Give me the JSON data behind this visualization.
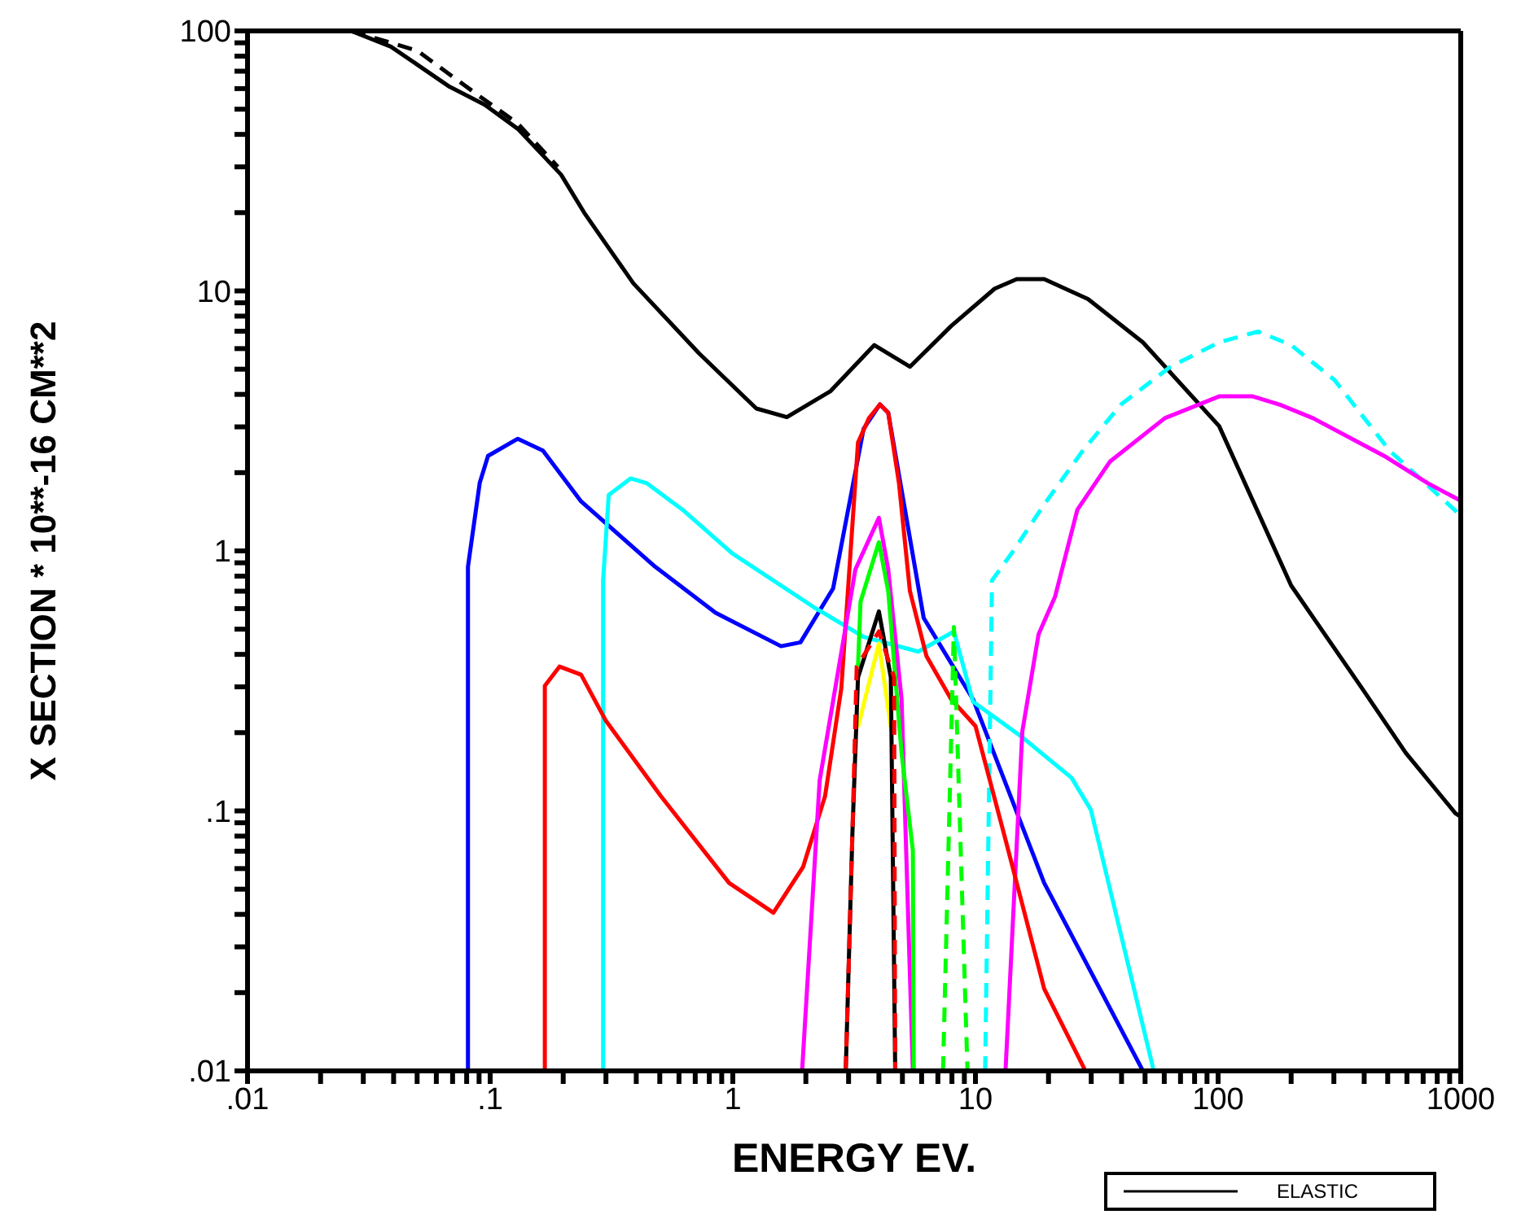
{
  "chart_data": {
    "type": "line",
    "xlabel": "ENERGY EV.",
    "ylabel": "X  SECTION  *  10**-16   CM**2",
    "log": "xy",
    "xlim": [
      0.01,
      1000
    ],
    "ylim": [
      0.01,
      100
    ],
    "xticks": [
      {
        "value": 0.01,
        "label": ".01"
      },
      {
        "value": 0.02,
        "label": null
      },
      {
        "value": 0.03,
        "label": null
      },
      {
        "value": 0.04,
        "label": null
      },
      {
        "value": 0.05,
        "label": null
      },
      {
        "value": 0.06,
        "label": null
      },
      {
        "value": 0.07,
        "label": null
      },
      {
        "value": 0.08,
        "label": null
      },
      {
        "value": 0.09,
        "label": null
      },
      {
        "value": 0.1,
        "label": ".1"
      },
      {
        "value": 0.2,
        "label": null
      },
      {
        "value": 0.3,
        "label": null
      },
      {
        "value": 0.4,
        "label": null
      },
      {
        "value": 0.5,
        "label": null
      },
      {
        "value": 0.6,
        "label": null
      },
      {
        "value": 0.7,
        "label": null
      },
      {
        "value": 0.8,
        "label": null
      },
      {
        "value": 0.9,
        "label": null
      },
      1,
      {
        "value": 2,
        "label": null
      },
      {
        "value": 3,
        "label": null
      },
      {
        "value": 4,
        "label": null
      },
      {
        "value": 5,
        "label": null
      },
      {
        "value": 6,
        "label": null
      },
      {
        "value": 7,
        "label": null
      },
      {
        "value": 8,
        "label": null
      },
      {
        "value": 9,
        "label": null
      },
      10,
      {
        "value": 20,
        "label": null
      },
      {
        "value": 30,
        "label": null
      },
      {
        "value": 40,
        "label": null
      },
      {
        "value": 50,
        "label": null
      },
      {
        "value": 60,
        "label": null
      },
      {
        "value": 70,
        "label": null
      },
      {
        "value": 80,
        "label": null
      },
      {
        "value": 90,
        "label": null
      },
      100,
      {
        "value": 200,
        "label": null
      },
      {
        "value": 300,
        "label": null
      },
      {
        "value": 400,
        "label": null
      },
      {
        "value": 500,
        "label": null
      },
      {
        "value": 600,
        "label": null
      },
      {
        "value": 700,
        "label": null
      },
      {
        "value": 800,
        "label": null
      },
      {
        "value": 900,
        "label": null
      },
      1000
    ],
    "yticks": [
      {
        "value": 0.01,
        "label": ".01"
      },
      {
        "value": 0.02,
        "label": null
      },
      {
        "value": 0.03,
        "label": null
      },
      {
        "value": 0.04,
        "label": null
      },
      {
        "value": 0.05,
        "label": null
      },
      {
        "value": 0.06,
        "label": null
      },
      {
        "value": 0.07,
        "label": null
      },
      {
        "value": 0.08,
        "label": null
      },
      {
        "value": 0.09,
        "label": null
      },
      {
        "value": 0.1,
        "label": ".1"
      },
      {
        "value": 0.2,
        "label": null
      },
      {
        "value": 0.3,
        "label": null
      },
      {
        "value": 0.4,
        "label": null
      },
      {
        "value": 0.5,
        "label": null
      },
      {
        "value": 0.6,
        "label": null
      },
      {
        "value": 0.7,
        "label": null
      },
      {
        "value": 0.8,
        "label": null
      },
      {
        "value": 0.9,
        "label": null
      },
      1,
      {
        "value": 2,
        "label": null
      },
      {
        "value": 3,
        "label": null
      },
      {
        "value": 4,
        "label": null
      },
      {
        "value": 5,
        "label": null
      },
      {
        "value": 6,
        "label": null
      },
      {
        "value": 7,
        "label": null
      },
      {
        "value": 8,
        "label": null
      },
      {
        "value": 9,
        "label": null
      },
      10,
      {
        "value": 20,
        "label": null
      },
      {
        "value": 30,
        "label": null
      },
      {
        "value": 40,
        "label": null
      },
      {
        "value": 50,
        "label": null
      },
      {
        "value": 60,
        "label": null
      },
      {
        "value": 70,
        "label": null
      },
      {
        "value": 80,
        "label": null
      },
      {
        "value": 90,
        "label": null
      },
      100
    ],
    "legend": "bottom right",
    "marker": "none",
    "series": [
      {
        "name": "ELASTIC",
        "color": "#000000",
        "line_style": "solid",
        "x": [
          0.0267,
          0.039,
          0.068,
          0.095,
          0.13,
          0.196,
          0.244,
          0.389,
          0.726,
          1.25,
          1.67,
          2.53,
          3.83,
          5.37,
          7.94,
          12.0,
          14.8,
          19.2,
          29.1,
          49,
          101,
          200,
          392,
          594,
          950,
          1000
        ],
        "values": [
          100,
          87,
          61,
          52,
          42,
          28,
          20,
          10.7,
          5.75,
          3.53,
          3.27,
          4.12,
          6.19,
          5.11,
          7.33,
          10.2,
          11.1,
          11.1,
          9.3,
          6.34,
          3.02,
          0.736,
          0.296,
          0.167,
          0.098,
          0.095
        ]
      },
      {
        "color": "#000000",
        "line_style": "dashed",
        "x": [
          0.0267,
          0.05,
          0.086,
          0.13,
          0.19
        ],
        "values": [
          100,
          84,
          58,
          44,
          30
        ]
      },
      {
        "color": "#0000ff",
        "line_style": "solid",
        "x": [
          0.081,
          0.081,
          0.0906,
          0.098,
          0.13,
          0.165,
          0.237,
          0.478,
          0.849,
          1.58,
          1.9,
          2.59,
          3.46,
          4.04,
          4.37,
          6.12,
          9.77,
          19.2,
          49
        ],
        "values": [
          0.01,
          0.87,
          1.83,
          2.32,
          2.7,
          2.43,
          1.55,
          0.87,
          0.578,
          0.43,
          0.445,
          0.717,
          2.95,
          3.66,
          3.4,
          0.552,
          0.269,
          0.0528,
          0.01
        ]
      },
      {
        "color": "#00ffff",
        "line_style": "solid",
        "x": [
          0.292,
          0.292,
          0.308,
          0.379,
          0.443,
          0.621,
          0.993,
          2.16,
          3.46,
          5.81,
          8.15,
          9.77,
          15.6,
          24.9,
          29.9,
          54.3
        ],
        "values": [
          0.01,
          0.77,
          1.64,
          1.9,
          1.82,
          1.44,
          0.98,
          0.607,
          0.467,
          0.41,
          0.49,
          0.263,
          0.192,
          0.134,
          0.101,
          0.01
        ]
      },
      {
        "color": "#00ffff",
        "line_style": "dashed",
        "x": [
          10.96,
          11.7,
          14.1,
          19.2,
          27.7,
          39.8,
          63.6,
          101,
          146,
          200,
          302,
          509,
          973,
          1000
        ],
        "values": [
          0.01,
          0.77,
          0.98,
          1.51,
          2.43,
          3.66,
          5.11,
          6.34,
          6.98,
          6.19,
          4.54,
          2.43,
          1.4,
          1.38
        ]
      },
      {
        "color": "#ff00ff",
        "line_style": "solid",
        "x": [
          13.3,
          15.6,
          18.2,
          21.3,
          26.3,
          35.9,
          60.3,
          101,
          139,
          180,
          246,
          483,
          732,
          973,
          1000
        ],
        "values": [
          0.01,
          0.202,
          0.478,
          0.668,
          1.44,
          2.21,
          3.24,
          3.93,
          3.93,
          3.65,
          3.24,
          2.32,
          1.82,
          1.58,
          1.56
        ]
      },
      {
        "color": "#ff0000",
        "line_style": "solid",
        "x": [
          0.168,
          0.168,
          0.193,
          0.237,
          0.3,
          0.505,
          0.966,
          1.47,
          1.95,
          2.4,
          2.8,
          3.28,
          3.64,
          4.04,
          4.37,
          4.84,
          5.37,
          6.28,
          7.94,
          10.0,
          13.3,
          19.2,
          28.4
        ],
        "values": [
          0.01,
          0.303,
          0.359,
          0.334,
          0.222,
          0.114,
          0.0528,
          0.0406,
          0.061,
          0.114,
          0.296,
          2.61,
          3.24,
          3.66,
          3.4,
          1.82,
          0.7,
          0.394,
          0.269,
          0.212,
          0.0775,
          0.0207,
          0.01
        ]
      },
      {
        "color": "#ff00ff",
        "line_style": "solid",
        "x": [
          1.93,
          2.28,
          3.2,
          4.0,
          4.37,
          4.96,
          5.52
        ],
        "values": [
          0.01,
          0.131,
          0.849,
          1.34,
          0.849,
          0.269,
          0.01
        ]
      },
      {
        "color": "#00ff00",
        "line_style": "solid",
        "x": [
          3.28,
          3.36,
          4.0,
          4.37,
          4.96,
          5.52,
          5.57
        ],
        "values": [
          0.359,
          0.637,
          1.08,
          0.7,
          0.167,
          0.0705,
          0.01
        ]
      },
      {
        "color": "#00ff00",
        "line_style": "dashed",
        "x": [
          7.35,
          8.15,
          9.27
        ],
        "values": [
          0.01,
          0.51,
          0.01
        ]
      },
      {
        "color": "#ffff00",
        "line_style": "solid",
        "x": [
          3.28,
          4.0,
          4.48
        ],
        "values": [
          0.21,
          0.44,
          0.21
        ]
      },
      {
        "color": "#000000",
        "line_style": "solid",
        "x": [
          2.92,
          3.11,
          3.28,
          4.0,
          4.48,
          4.67
        ],
        "values": [
          0.01,
          0.0813,
          0.326,
          0.585,
          0.326,
          0.01
        ]
      },
      {
        "color": "#ff0000",
        "line_style": "dashed",
        "x": [
          2.92,
          3.11,
          3.24,
          4.0,
          4.62,
          4.67
        ],
        "values": [
          0.01,
          0.0813,
          0.359,
          0.49,
          0.326,
          0.01
        ]
      }
    ]
  }
}
